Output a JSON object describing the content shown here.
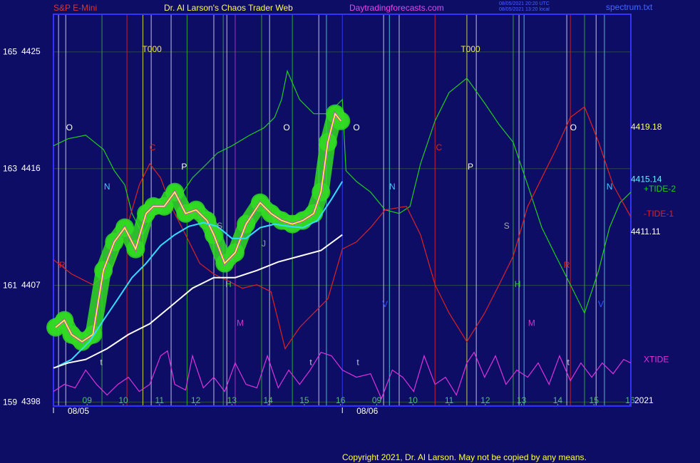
{
  "chart_data": {
    "type": "line",
    "title": "Dr. Al Larson's Chaos Trader Web",
    "instrument": "S&P E-Mini",
    "site": "Daytradingforecasts.com",
    "stamp": [
      "08/05/2021 20:20 UTC",
      "08/05/2021 13:20 local"
    ],
    "file": "spectrum.txt",
    "year": "2021",
    "copyright": "Copyright 2021, Dr. Al Larson. May not be copied by any means.",
    "xlim": [
      -0.93,
      15.02
    ],
    "ylim": [
      4397.7,
      4427.9
    ],
    "y2lim": [
      158.94,
      165.65
    ],
    "yticks": [
      4398,
      4407,
      4416,
      4425
    ],
    "y2ticks": [
      159,
      161,
      163,
      165
    ],
    "xticks": [
      {
        "value": 0,
        "label": "09"
      },
      {
        "value": 1,
        "label": "10"
      },
      {
        "value": 2,
        "label": "11"
      },
      {
        "value": 3,
        "label": "12"
      },
      {
        "value": 4,
        "label": "13"
      },
      {
        "value": 5,
        "label": "14"
      },
      {
        "value": 6,
        "label": "15"
      },
      {
        "value": 7,
        "label": "16"
      },
      {
        "value": 8,
        "label": "09"
      },
      {
        "value": 9,
        "label": "10"
      },
      {
        "value": 10,
        "label": "11"
      },
      {
        "value": 11,
        "label": "12"
      },
      {
        "value": 12,
        "label": "13"
      },
      {
        "value": 13,
        "label": "14"
      },
      {
        "value": 14,
        "label": "15"
      },
      {
        "value": 15,
        "label": "16"
      }
    ],
    "date_ticks": [
      {
        "value": -0.93,
        "label": "08/05"
      },
      {
        "value": 7.05,
        "label": "08/06"
      }
    ],
    "grid": true,
    "series": [
      {
        "name": "+TIDE-2",
        "color": "#22cc22",
        "x": [
          -0.93,
          -0.53,
          -0.04,
          0.45,
          0.75,
          1.04,
          1.24,
          1.54,
          1.83,
          2.13,
          2.52,
          2.91,
          3.31,
          3.6,
          4.0,
          4.49,
          4.88,
          5.18,
          5.37,
          5.53,
          5.87,
          6.26,
          6.65,
          7.05,
          7.15,
          7.44,
          7.83,
          8.23,
          8.62,
          8.92,
          9.21,
          9.61,
          10.0,
          10.49,
          10.98,
          11.38,
          11.77,
          12.17,
          12.56,
          12.95,
          13.35,
          13.74,
          14.13,
          14.43,
          14.72,
          15.02
        ],
        "values": [
          4417.76,
          4418.3,
          4418.58,
          4417.48,
          4415.84,
          4414.74,
          4412.54,
          4410.9,
          4412.54,
          4414.19,
          4413.64,
          4415.29,
          4416.38,
          4417.21,
          4417.76,
          4418.58,
          4419.13,
          4419.95,
          4421.32,
          4423.52,
          4421.32,
          4420.23,
          4420.23,
          4421.32,
          4415.84,
          4415.01,
          4414.19,
          4412.82,
          4412.54,
          4413.09,
          4416.38,
          4419.68,
          4421.87,
          4422.97,
          4421.05,
          4419.4,
          4418.03,
          4414.74,
          4411.45,
          4409.25,
          4407.05,
          4404.86,
          4408.15,
          4411.45,
          4413.37,
          4414.19
        ]
      },
      {
        "name": "-TIDE-1",
        "color": "#dd2222",
        "x": [
          -0.93,
          -0.43,
          0.16,
          0.65,
          1.04,
          1.44,
          1.73,
          2.03,
          2.32,
          2.72,
          3.11,
          3.5,
          3.9,
          4.29,
          4.69,
          5.08,
          5.47,
          5.87,
          6.26,
          6.65,
          7.05,
          7.44,
          7.83,
          8.23,
          8.82,
          9.21,
          9.61,
          10.0,
          10.49,
          10.98,
          11.38,
          11.77,
          12.17,
          12.56,
          12.95,
          13.35,
          13.74,
          14.13,
          14.53,
          15.02
        ],
        "values": [
          4408.98,
          4407.88,
          4407.05,
          4408.15,
          4410.9,
          4414.74,
          4416.38,
          4415.29,
          4413.09,
          4410.9,
          4408.7,
          4407.88,
          4407.33,
          4406.78,
          4407.05,
          4406.51,
          4402.12,
          4403.76,
          4404.86,
          4405.96,
          4409.8,
          4410.35,
          4411.45,
          4412.82,
          4413.09,
          4410.9,
          4407.05,
          4404.86,
          4402.66,
          4404.86,
          4407.05,
          4409.25,
          4413.09,
          4415.29,
          4417.48,
          4419.95,
          4420.77,
          4418.03,
          4414.74,
          4412.27
        ]
      },
      {
        "name": "XTIDE",
        "color": "#dd33dd",
        "x": [
          -0.93,
          -0.63,
          -0.33,
          -0.04,
          0.26,
          0.55,
          0.85,
          1.14,
          1.44,
          1.73,
          2.03,
          2.22,
          2.42,
          2.72,
          2.91,
          3.21,
          3.5,
          3.8,
          4.09,
          4.39,
          4.69,
          4.98,
          5.28,
          5.57,
          5.87,
          6.16,
          6.46,
          6.75,
          7.05,
          7.44,
          7.83,
          8.13,
          8.43,
          8.72,
          9.02,
          9.31,
          9.61,
          9.9,
          10.2,
          10.49,
          10.69,
          10.98,
          11.28,
          11.57,
          11.87,
          12.17,
          12.46,
          12.76,
          13.05,
          13.35,
          13.64,
          13.94,
          14.23,
          14.53,
          14.82,
          15.02
        ],
        "values": [
          4398.82,
          4399.37,
          4399.1,
          4400.47,
          4399.37,
          4398.55,
          4399.37,
          4399.92,
          4398.82,
          4399.37,
          4401.57,
          4401.95,
          4399.37,
          4398.93,
          4401.57,
          4399.1,
          4399.92,
          4398.82,
          4401.02,
          4399.37,
          4399.1,
          4401.57,
          4399.1,
          4400.47,
          4399.37,
          4400.47,
          4401.84,
          4401.57,
          4400.47,
          4399.92,
          4400.19,
          4398.27,
          4400.47,
          4399.92,
          4398.82,
          4401.57,
          4399.37,
          4399.92,
          4398.55,
          4401.02,
          4401.84,
          4399.92,
          4401.57,
          4399.37,
          4400.47,
          4399.92,
          4401.02,
          4399.37,
          4401.57,
          4399.65,
          4401.02,
          4399.92,
          4401.02,
          4400.19,
          4401.29,
          4401.02
        ]
      },
      {
        "color": "#ffff33",
        "glow": "#33dd22",
        "x": [
          -0.87,
          -0.63,
          -0.43,
          -0.14,
          0.16,
          0.45,
          0.75,
          1.04,
          1.34,
          1.63,
          1.83,
          2.13,
          2.42,
          2.72,
          3.01,
          3.31,
          3.5,
          3.8,
          4.09,
          4.39,
          4.78,
          5.08,
          5.37,
          5.67,
          5.96,
          6.26,
          6.46,
          6.65,
          6.85,
          7.01
        ],
        "values": [
          4403.76,
          4404.31,
          4403.21,
          4402.66,
          4403.21,
          4408.15,
          4410.35,
          4411.45,
          4409.8,
          4412.54,
          4413.09,
          4413.09,
          4414.19,
          4412.54,
          4412.82,
          4412.0,
          4410.9,
          4408.7,
          4409.52,
          4411.72,
          4413.37,
          4412.54,
          4412.0,
          4411.72,
          4412.0,
          4412.54,
          4414.19,
          4418.03,
          4420.23,
          4419.68
        ]
      },
      {
        "color": "#33ddff",
        "x": [
          -0.83,
          -0.43,
          0.06,
          0.45,
          0.85,
          1.24,
          1.63,
          2.03,
          2.42,
          2.81,
          3.21,
          3.6,
          4.0,
          4.39,
          4.78,
          5.18,
          5.57,
          5.96,
          6.36,
          6.75,
          7.05
        ],
        "values": [
          4400.74,
          4401.29,
          4402.66,
          4404.31,
          4405.96,
          4407.6,
          4408.7,
          4410.07,
          4410.9,
          4411.55,
          4411.83,
          4411.55,
          4410.62,
          4410.62,
          4411.45,
          4411.72,
          4411.55,
          4411.45,
          4412.0,
          4413.64,
          4415.01
        ]
      },
      {
        "color": "#ffffff",
        "x": [
          -0.93,
          -0.53,
          -0.04,
          0.55,
          1.14,
          1.73,
          2.32,
          2.91,
          3.5,
          4.09,
          4.69,
          5.28,
          5.87,
          6.46,
          7.05
        ],
        "values": [
          4400.63,
          4401.02,
          4401.29,
          4402.12,
          4403.21,
          4404.04,
          4405.41,
          4406.78,
          4407.6,
          4407.6,
          4408.15,
          4408.81,
          4409.25,
          4409.69,
          4410.9
        ]
      }
    ],
    "price_labels": [
      4419.18,
      4415.14,
      4411.11
    ],
    "price_label_colors": [
      "#ffff66",
      "#66eeff",
      "#ffffff"
    ],
    "vlines": [
      -0.79,
      -0.59,
      0.41,
      1.1,
      1.54,
      1.77,
      2.32,
      2.76,
      3.5,
      3.76,
      3.86,
      4.09,
      4.82,
      5.04,
      5.67,
      6.4,
      6.61,
      7.05,
      8.19,
      8.35,
      8.62,
      9.61,
      10.49,
      10.75,
      11.77,
      11.93,
      12.07,
      13.25,
      13.35,
      13.74,
      14.06,
      14.29
    ],
    "vline_colors": [
      "#ddddff",
      "#ddddff",
      "#33bb33",
      "#dd2222",
      "#eeee44",
      "#ddddff",
      "#ddddff",
      "#33bb33",
      "#ddddff",
      "#33bb33",
      "#ddddff",
      "#cc33cc",
      "#33bb33",
      "#ddddff",
      "#33bb33",
      "#ddddff",
      "#44dddd",
      "#3344ff",
      "#ddddff",
      "#44dddd",
      "#ddddff",
      "#dd2222",
      "#eeee44",
      "#ddddff",
      "#33bb33",
      "#ddddff",
      "#44dddd",
      "#ddddff",
      "#dd2222",
      "#33bb33",
      "#ddddff",
      "#44dddd"
    ],
    "annotations": [
      {
        "text": "T000",
        "x": 1.79,
        "y": 4425.16,
        "color": "#eeee44"
      },
      {
        "text": "T000",
        "x": 10.59,
        "y": 4425.16,
        "color": "#eeee44"
      },
      {
        "text": "O",
        "x": -0.49,
        "y": 4419.13,
        "color": "#ffffff"
      },
      {
        "text": "O",
        "x": 5.51,
        "y": 4419.13,
        "color": "#ffffff"
      },
      {
        "text": "O",
        "x": 7.44,
        "y": 4419.13,
        "color": "#ffffff"
      },
      {
        "text": "O",
        "x": 13.43,
        "y": 4419.13,
        "color": "#ffffff"
      },
      {
        "text": "N",
        "x": 0.55,
        "y": 4414.57,
        "color": "#44ccff"
      },
      {
        "text": "N",
        "x": 8.43,
        "y": 4414.57,
        "color": "#44ccff"
      },
      {
        "text": "N",
        "x": 14.43,
        "y": 4414.57,
        "color": "#44ccff"
      },
      {
        "text": "C",
        "x": 1.81,
        "y": 4417.59,
        "color": "#dd2222"
      },
      {
        "text": "C",
        "x": 9.72,
        "y": 4417.59,
        "color": "#dd2222"
      },
      {
        "text": "P",
        "x": 2.68,
        "y": 4416.11,
        "color": "#ffffff"
      },
      {
        "text": "P",
        "x": 10.59,
        "y": 4416.11,
        "color": "#ffffff"
      },
      {
        "text": "S",
        "x": 3.66,
        "y": 4411.55,
        "color": "#aaaaaa"
      },
      {
        "text": "S",
        "x": 11.59,
        "y": 4411.55,
        "color": "#aaaaaa"
      },
      {
        "text": "H",
        "x": 3.9,
        "y": 4407.05,
        "color": "#33cc33"
      },
      {
        "text": "H",
        "x": 11.89,
        "y": 4407.05,
        "color": "#33cc33"
      },
      {
        "text": "M",
        "x": 4.23,
        "y": 4404.04,
        "color": "#cc33cc"
      },
      {
        "text": "M",
        "x": 12.28,
        "y": 4404.04,
        "color": "#cc33cc"
      },
      {
        "text": "R",
        "x": -0.69,
        "y": 4408.54,
        "color": "#dd2222"
      },
      {
        "text": "R",
        "x": 13.25,
        "y": 4408.54,
        "color": "#dd2222"
      },
      {
        "text": "J",
        "x": 4.88,
        "y": 4410.18,
        "color": "#88aa88"
      },
      {
        "text": "V",
        "x": 8.23,
        "y": 4405.52,
        "color": "#3355ff"
      },
      {
        "text": "V",
        "x": 14.19,
        "y": 4405.52,
        "color": "#3355ff"
      },
      {
        "text": "t",
        "x": 0.39,
        "y": 4401.02,
        "color": "#cccccc"
      },
      {
        "text": "t",
        "x": 6.18,
        "y": 4401.02,
        "color": "#cccccc"
      },
      {
        "text": "t",
        "x": 7.48,
        "y": 4401.02,
        "color": "#cccccc"
      },
      {
        "text": "t",
        "x": 13.29,
        "y": 4401.02,
        "color": "#cccccc"
      }
    ]
  }
}
